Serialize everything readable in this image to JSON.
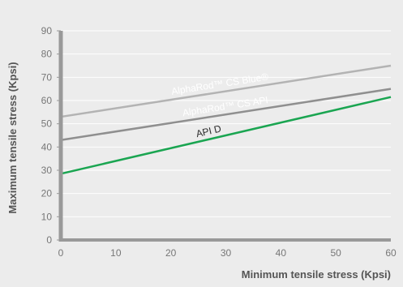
{
  "chart_data": {
    "type": "line",
    "xlabel": "Minimum tensile stress (Kpsi)",
    "ylabel": "Maximum tensile stress (Kpsi)",
    "xlim": [
      0,
      60
    ],
    "ylim": [
      0,
      90
    ],
    "x_ticks": [
      "0",
      "10",
      "20",
      "30",
      "40",
      "50",
      "60"
    ],
    "y_ticks": [
      "0",
      "10",
      "20",
      "30",
      "40",
      "50",
      "60",
      "70",
      "80",
      "90"
    ],
    "grid": "horizontal",
    "legend": "none",
    "series": [
      {
        "name": "AlphaRod™ CS Blue®",
        "x": [
          0,
          60
        ],
        "values": [
          53,
          75
        ],
        "color": "#b3b3b3",
        "label_x": 29
      },
      {
        "name": "AlphaRod™ CS API",
        "x": [
          0,
          60
        ],
        "values": [
          43,
          65
        ],
        "color": "#8f8f8f",
        "label_x": 30
      },
      {
        "name": "API D",
        "x": [
          0,
          60
        ],
        "values": [
          28.5,
          61.5
        ],
        "color": "#1aa551",
        "label_x": 27
      }
    ],
    "axis_color": "#999999",
    "grid_color": "#ffffff"
  }
}
